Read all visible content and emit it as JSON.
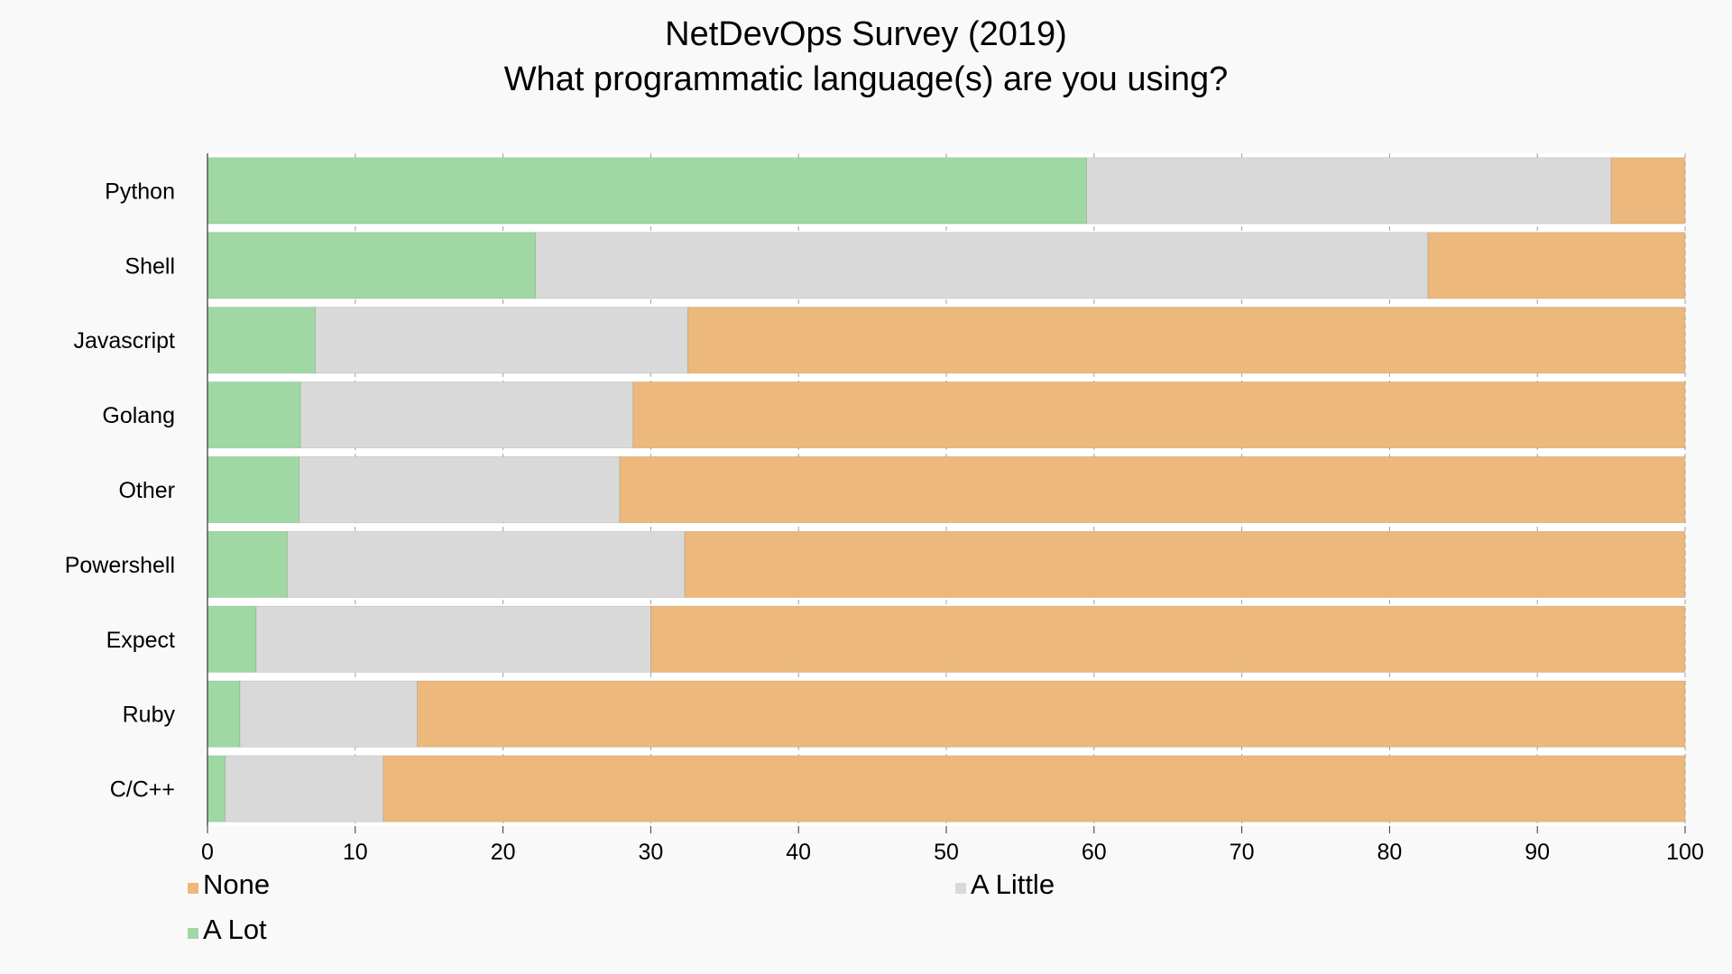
{
  "chart_data": {
    "type": "bar",
    "orientation": "horizontal",
    "stacked": true,
    "title": "NetDevOps Survey (2019)",
    "subtitle": "What programmatic language(s) are you using?",
    "xlabel": "",
    "ylabel": "",
    "xlim": [
      0,
      100
    ],
    "x_ticks": [
      0,
      10,
      20,
      30,
      40,
      50,
      60,
      70,
      80,
      90,
      100
    ],
    "grid": true,
    "legend_position": "bottom",
    "categories": [
      "Python",
      "Shell",
      "Javascript",
      "Golang",
      "Other",
      "Powershell",
      "Expect",
      "Ruby",
      "C/C++"
    ],
    "series": [
      {
        "name": "A Lot",
        "color": "#a0d8a3",
        "values": [
          59.5,
          22.2,
          7.3,
          6.3,
          6.2,
          5.4,
          3.3,
          2.2,
          1.2
        ]
      },
      {
        "name": "A Little",
        "color": "#d9d9d9",
        "values": [
          35.5,
          60.4,
          25.2,
          22.5,
          21.7,
          26.9,
          26.7,
          12.0,
          10.7
        ]
      },
      {
        "name": "None",
        "color": "#ecb87b",
        "values": [
          5.0,
          17.4,
          67.5,
          71.2,
          72.1,
          67.7,
          70.0,
          85.8,
          88.1
        ]
      }
    ],
    "legend": [
      {
        "name": "None",
        "color": "#ecb87b"
      },
      {
        "name": "A Little",
        "color": "#d9d9d9"
      },
      {
        "name": "A Lot",
        "color": "#a0d8a3"
      }
    ]
  }
}
